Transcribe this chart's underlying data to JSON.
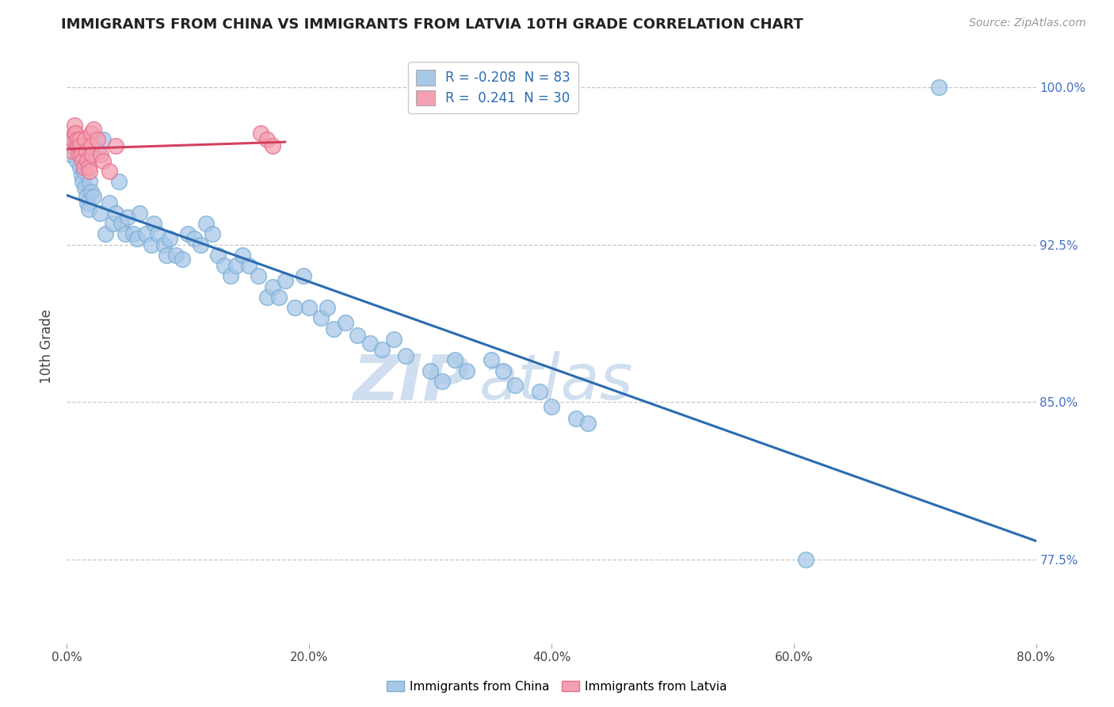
{
  "title": "IMMIGRANTS FROM CHINA VS IMMIGRANTS FROM LATVIA 10TH GRADE CORRELATION CHART",
  "source": "Source: ZipAtlas.com",
  "ylabel_label": "10th Grade",
  "xlim": [
    0.0,
    0.8
  ],
  "ylim": [
    0.735,
    1.018
  ],
  "yticks": [
    0.775,
    0.85,
    0.925,
    1.0
  ],
  "xticks": [
    0.0,
    0.2,
    0.4,
    0.6,
    0.8
  ],
  "r_china": -0.208,
  "n_china": 83,
  "r_latvia": 0.241,
  "n_latvia": 30,
  "china_color": "#a8c8e8",
  "latvia_color": "#f4a0b0",
  "china_edge_color": "#7aafd4",
  "latvia_edge_color": "#e87090",
  "china_line_color": "#2b6cb0",
  "latvia_line_color": "#d44060",
  "watermark_color": "#d0dff0",
  "legend_box_china": "#a8c8e8",
  "legend_box_latvia": "#f4a0b0",
  "legend_text_color": "#2b6cb0",
  "right_tick_color": "#4472c4",
  "china_x": [
    0.003,
    0.005,
    0.006,
    0.007,
    0.008,
    0.009,
    0.01,
    0.01,
    0.011,
    0.012,
    0.013,
    0.014,
    0.015,
    0.016,
    0.017,
    0.018,
    0.019,
    0.02,
    0.022,
    0.025,
    0.027,
    0.03,
    0.032,
    0.035,
    0.038,
    0.04,
    0.043,
    0.045,
    0.048,
    0.05,
    0.055,
    0.058,
    0.06,
    0.065,
    0.07,
    0.072,
    0.075,
    0.08,
    0.082,
    0.085,
    0.09,
    0.095,
    0.1,
    0.105,
    0.11,
    0.115,
    0.12,
    0.125,
    0.13,
    0.135,
    0.14,
    0.145,
    0.15,
    0.158,
    0.165,
    0.17,
    0.175,
    0.18,
    0.188,
    0.195,
    0.2,
    0.21,
    0.215,
    0.22,
    0.23,
    0.24,
    0.25,
    0.26,
    0.27,
    0.28,
    0.3,
    0.31,
    0.32,
    0.33,
    0.35,
    0.36,
    0.37,
    0.39,
    0.4,
    0.42,
    0.43,
    0.61,
    0.72
  ],
  "china_y": [
    0.968,
    0.972,
    0.975,
    0.978,
    0.965,
    0.97,
    0.975,
    0.968,
    0.962,
    0.958,
    0.955,
    0.96,
    0.952,
    0.948,
    0.945,
    0.942,
    0.955,
    0.95,
    0.948,
    0.97,
    0.94,
    0.975,
    0.93,
    0.945,
    0.935,
    0.94,
    0.955,
    0.935,
    0.93,
    0.938,
    0.93,
    0.928,
    0.94,
    0.93,
    0.925,
    0.935,
    0.93,
    0.925,
    0.92,
    0.928,
    0.92,
    0.918,
    0.93,
    0.928,
    0.925,
    0.935,
    0.93,
    0.92,
    0.915,
    0.91,
    0.915,
    0.92,
    0.915,
    0.91,
    0.9,
    0.905,
    0.9,
    0.908,
    0.895,
    0.91,
    0.895,
    0.89,
    0.895,
    0.885,
    0.888,
    0.882,
    0.878,
    0.875,
    0.88,
    0.872,
    0.865,
    0.86,
    0.87,
    0.865,
    0.87,
    0.865,
    0.858,
    0.855,
    0.848,
    0.842,
    0.84,
    0.775,
    1.0
  ],
  "latvia_x": [
    0.004,
    0.005,
    0.006,
    0.006,
    0.007,
    0.008,
    0.009,
    0.01,
    0.01,
    0.011,
    0.012,
    0.013,
    0.014,
    0.015,
    0.016,
    0.017,
    0.018,
    0.019,
    0.02,
    0.02,
    0.021,
    0.022,
    0.025,
    0.028,
    0.03,
    0.035,
    0.04,
    0.16,
    0.165,
    0.17
  ],
  "latvia_y": [
    0.97,
    0.975,
    0.978,
    0.982,
    0.978,
    0.975,
    0.972,
    0.968,
    0.975,
    0.972,
    0.968,
    0.965,
    0.962,
    0.975,
    0.97,
    0.965,
    0.962,
    0.96,
    0.978,
    0.972,
    0.968,
    0.98,
    0.975,
    0.968,
    0.965,
    0.96,
    0.972,
    0.978,
    0.975,
    0.972
  ]
}
